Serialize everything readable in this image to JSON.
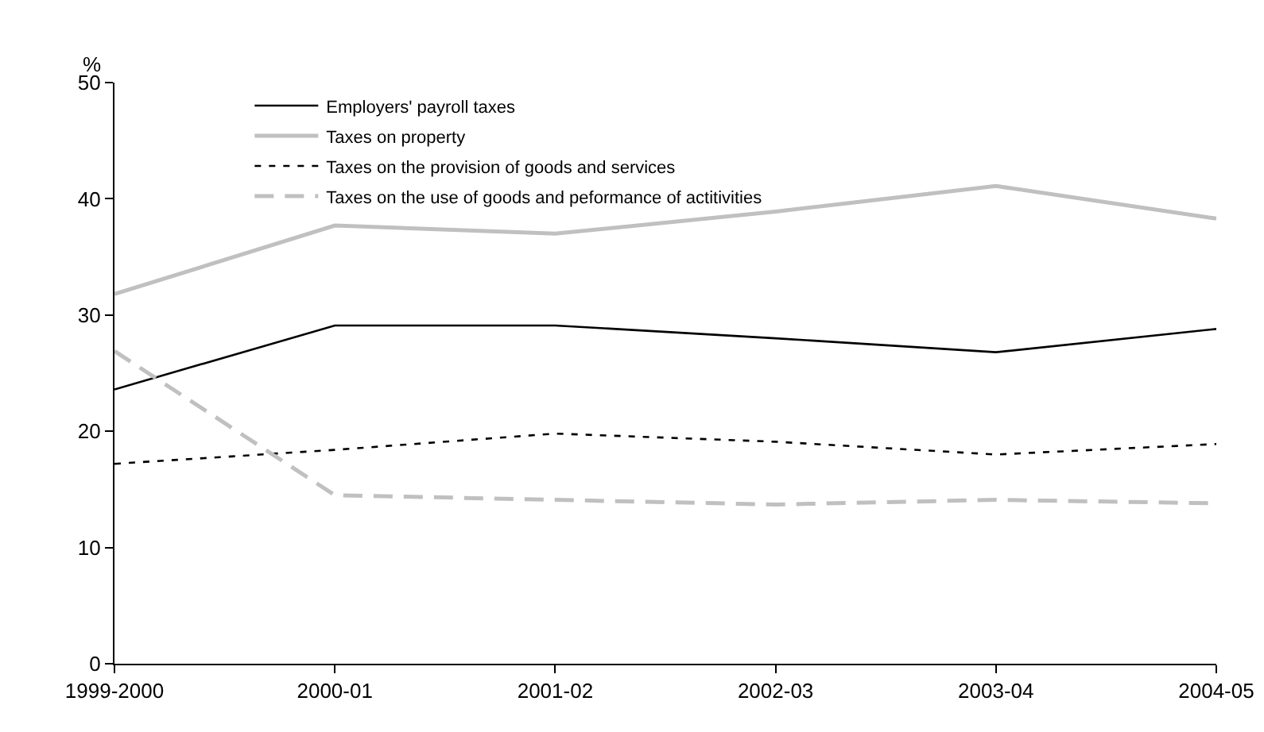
{
  "chart_data": {
    "type": "line",
    "ylabel": "%",
    "categories": [
      "1999-2000",
      "2000-01",
      "2001-02",
      "2002-03",
      "2003-04",
      "2004-05"
    ],
    "series": [
      {
        "name": "Employers' payroll taxes",
        "color": "#000000",
        "line_style": "solid",
        "values": [
          23.6,
          29.1,
          29.1,
          28.0,
          26.8,
          28.8
        ]
      },
      {
        "name": "Taxes on property",
        "color": "#c0c0c0",
        "line_style": "solid",
        "values": [
          31.8,
          37.7,
          37.0,
          38.9,
          41.1,
          38.3
        ]
      },
      {
        "name": "Taxes on the provision of goods and services",
        "color": "#000000",
        "line_style": "dotted",
        "values": [
          17.2,
          18.4,
          19.8,
          19.1,
          18.0,
          18.9
        ]
      },
      {
        "name": "Taxes on the use of goods and peformance of actitivities",
        "color": "#c0c0c0",
        "line_style": "dashed",
        "values": [
          26.9,
          14.5,
          14.1,
          13.7,
          14.1,
          13.8
        ]
      }
    ],
    "ylim": [
      0,
      50
    ],
    "yticks": [
      0,
      10,
      20,
      30,
      40,
      50
    ],
    "grid": false,
    "legend": "top left",
    "marker": "none"
  }
}
